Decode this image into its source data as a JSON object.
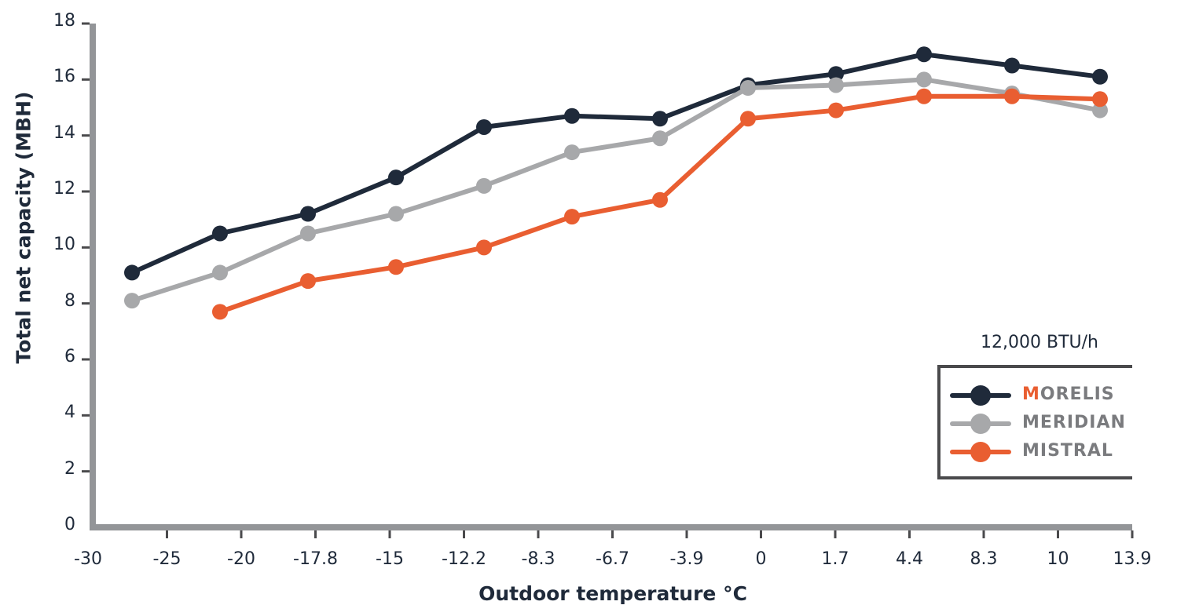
{
  "chart_data": {
    "type": "line",
    "title": "",
    "xlabel": "Outdoor temperature °C",
    "ylabel": "Total net capacity (MBH)",
    "ylim": [
      0,
      18
    ],
    "yticks": [
      "0",
      "2",
      "4",
      "6",
      "8",
      "10",
      "12",
      "14",
      "16",
      "18"
    ],
    "x_tick_labels": [
      "-30",
      "-25",
      "-20",
      "-17.8",
      "-15",
      "-12.2",
      "-8.3",
      "-6.7",
      "-3.9",
      "0",
      "1.7",
      "4.4",
      "8.3",
      "10",
      "13.9"
    ],
    "points_per_series": 12,
    "grid": false,
    "legend_position": "lower right",
    "legend_title": "12,000 BTU/h",
    "series": [
      {
        "name": "MORELIS",
        "color": "#1f2a3a",
        "values": [
          9.1,
          10.5,
          11.2,
          12.5,
          14.3,
          14.7,
          14.6,
          15.8,
          16.2,
          16.9,
          16.5,
          16.1
        ]
      },
      {
        "name": "MERIDIAN",
        "color": "#a7a8aa",
        "values": [
          8.1,
          9.1,
          10.5,
          11.2,
          12.2,
          13.4,
          13.9,
          15.7,
          15.8,
          16.0,
          15.5,
          14.9
        ]
      },
      {
        "name": "MISTRAL",
        "color": "#e95e31",
        "values": [
          null,
          7.7,
          8.8,
          9.3,
          10.0,
          11.1,
          11.7,
          14.6,
          14.9,
          15.4,
          15.4,
          15.3
        ]
      }
    ]
  },
  "axis": {
    "y_title": "Total net capacity (MBH)",
    "x_title": "Outdoor temperature °C"
  },
  "legend": {
    "title": "12,000 BTU/h",
    "items": [
      {
        "label_accent": "M",
        "label_rest": "ORELIS"
      },
      {
        "label_accent": "",
        "label_rest": "MERIDIAN"
      },
      {
        "label_accent": "",
        "label_rest": "MISTRAL"
      }
    ]
  },
  "colors": {
    "axis": "#939598",
    "tick": "#4a4a4c",
    "text": "#1f2a3a",
    "accent": "#e95e31"
  }
}
